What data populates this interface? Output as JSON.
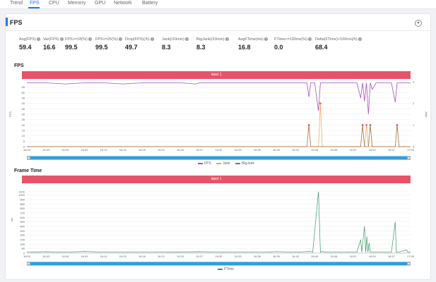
{
  "nav": {
    "tabs": [
      "Trend",
      "FPS",
      "CPU",
      "Memory",
      "GPU",
      "Network",
      "Battery"
    ],
    "active_index": 1
  },
  "fps_panel": {
    "title": "FPS",
    "metrics": [
      {
        "label": "Avg(FPS)",
        "value": "59.4"
      },
      {
        "label": "Var(FPS)",
        "value": "16.6"
      },
      {
        "label": "FPS>=18(%)",
        "value": "99.5"
      },
      {
        "label": "FPS>=25(%)",
        "value": "99.5"
      },
      {
        "label": "Drop(FPS)(/h)",
        "value": "49.7"
      },
      {
        "label": "Jank(/10min)",
        "value": "8.3"
      },
      {
        "label": "BigJank(/10min)",
        "value": "8.3"
      },
      {
        "label": "AvgFTime(ms)",
        "value": "16.8"
      },
      {
        "label": "FTime>=100ms(%)",
        "value": "0.0"
      },
      {
        "label": "Delta(FTime)>100ms(/h)",
        "value": "68.4"
      }
    ]
  },
  "fps_chart": {
    "title": "FPS",
    "range_label": "label 1",
    "ylabel_left": "FPS",
    "ylabel_right": "Jank",
    "legend": [
      "FPS",
      "Jank",
      "BigJank"
    ],
    "colors": {
      "fps": "#a64fc4",
      "jank": "#f0a050",
      "bigjank": "#a07040",
      "label_bar": "#e8536a",
      "scroller": "#2d9fe0"
    }
  },
  "ftime_chart": {
    "title": "Frame Time",
    "range_label": "label 1",
    "ylabel": "ms",
    "legend": [
      "FTime"
    ],
    "colors": {
      "ftime": "#3a9a6a"
    }
  },
  "chart_data": [
    {
      "type": "line",
      "title": "FPS",
      "x": [
        "16:00",
        "16:03",
        "16:06",
        "16:09",
        "16:12",
        "16:15",
        "16:18",
        "16:21",
        "16:24",
        "16:27",
        "16:30",
        "16:33",
        "16:36",
        "16:39",
        "16:42",
        "16:45",
        "16:48",
        "16:51",
        "16:54",
        "16:57",
        "17:00"
      ],
      "ylim_left": [
        0,
        60
      ],
      "yticks_left": [
        0,
        5,
        10,
        15,
        20,
        25,
        30,
        35,
        40,
        45,
        50,
        55
      ],
      "ylim_right": [
        0,
        3
      ],
      "yticks_right": [
        0,
        1,
        2,
        3
      ],
      "series": [
        {
          "name": "FPS",
          "axis": "left",
          "points": [
            [
              0,
              59
            ],
            [
              5,
              59
            ],
            [
              10,
              58
            ],
            [
              15,
              59
            ],
            [
              20,
              59
            ],
            [
              25,
              58
            ],
            [
              30,
              59
            ],
            [
              35,
              59
            ],
            [
              40,
              59
            ],
            [
              44,
              58
            ],
            [
              45,
              59
            ],
            [
              50,
              59
            ],
            [
              55,
              59
            ],
            [
              60,
              59
            ],
            [
              65,
              59
            ],
            [
              70,
              59
            ],
            [
              73,
              59
            ],
            [
              73.5,
              46
            ],
            [
              74,
              59
            ],
            [
              75,
              59
            ],
            [
              76,
              33
            ],
            [
              76.5,
              59
            ],
            [
              80,
              59
            ],
            [
              84,
              59
            ],
            [
              86,
              59
            ],
            [
              87,
              45
            ],
            [
              87.5,
              59
            ],
            [
              88,
              42
            ],
            [
              88.5,
              59
            ],
            [
              89,
              30
            ],
            [
              89.5,
              59
            ],
            [
              90,
              53
            ],
            [
              91,
              59
            ],
            [
              95,
              59
            ],
            [
              96,
              41
            ],
            [
              96.5,
              59
            ],
            [
              100,
              59
            ]
          ]
        },
        {
          "name": "Jank",
          "axis": "right",
          "points": [
            [
              0,
              0
            ],
            [
              73,
              0
            ],
            [
              73.5,
              1
            ],
            [
              74,
              0
            ],
            [
              76,
              0
            ],
            [
              76.5,
              2
            ],
            [
              77,
              0
            ],
            [
              87,
              0
            ],
            [
              87.5,
              1
            ],
            [
              88,
              0
            ],
            [
              88.5,
              1
            ],
            [
              89,
              0
            ],
            [
              89.5,
              1
            ],
            [
              90,
              0
            ],
            [
              96,
              0
            ],
            [
              96.5,
              1
            ],
            [
              97,
              0
            ],
            [
              100,
              0
            ]
          ]
        },
        {
          "name": "BigJank",
          "axis": "right",
          "points": [
            [
              0,
              0
            ],
            [
              73,
              0
            ],
            [
              73.5,
              1
            ],
            [
              74,
              0
            ],
            [
              87,
              0
            ],
            [
              87.5,
              1
            ],
            [
              88,
              0
            ],
            [
              89,
              0
            ],
            [
              89.5,
              1
            ],
            [
              90,
              0
            ],
            [
              96,
              0
            ],
            [
              96.5,
              1
            ],
            [
              97,
              0
            ],
            [
              100,
              0
            ]
          ]
        }
      ]
    },
    {
      "type": "line",
      "title": "Frame Time",
      "x": [
        "16:00",
        "16:03",
        "16:06",
        "16:09",
        "16:12",
        "16:15",
        "16:18",
        "16:21",
        "16:24",
        "16:27",
        "16:30",
        "16:33",
        "16:36",
        "16:39",
        "16:42",
        "16:45",
        "16:48",
        "16:51",
        "16:54",
        "16:57",
        "17:00"
      ],
      "ylim": [
        0,
        1200
      ],
      "yticks": [
        0,
        80,
        160,
        240,
        320,
        400,
        480,
        560,
        640,
        720,
        800,
        880,
        960,
        1040,
        1100
      ],
      "series": [
        {
          "name": "FTime",
          "points": [
            [
              0,
              17
            ],
            [
              5,
              25
            ],
            [
              10,
              17
            ],
            [
              15,
              30
            ],
            [
              20,
              17
            ],
            [
              25,
              17
            ],
            [
              30,
              17
            ],
            [
              35,
              17
            ],
            [
              45,
              25
            ],
            [
              50,
              17
            ],
            [
              55,
              17
            ],
            [
              62,
              17
            ],
            [
              65,
              28
            ],
            [
              70,
              17
            ],
            [
              74,
              30
            ],
            [
              74.5,
              17
            ],
            [
              76,
              1100
            ],
            [
              76.5,
              17
            ],
            [
              77,
              30
            ],
            [
              78,
              17
            ],
            [
              86,
              17
            ],
            [
              87,
              240
            ],
            [
              87.3,
              17
            ],
            [
              88,
              480
            ],
            [
              88.3,
              17
            ],
            [
              88.6,
              300
            ],
            [
              88.9,
              17
            ],
            [
              89.2,
              180
            ],
            [
              89.5,
              17
            ],
            [
              95,
              17
            ],
            [
              96,
              560
            ],
            [
              96.3,
              17
            ],
            [
              97,
              17
            ],
            [
              99,
              60
            ],
            [
              99.3,
              17
            ],
            [
              100,
              17
            ]
          ]
        }
      ]
    }
  ]
}
